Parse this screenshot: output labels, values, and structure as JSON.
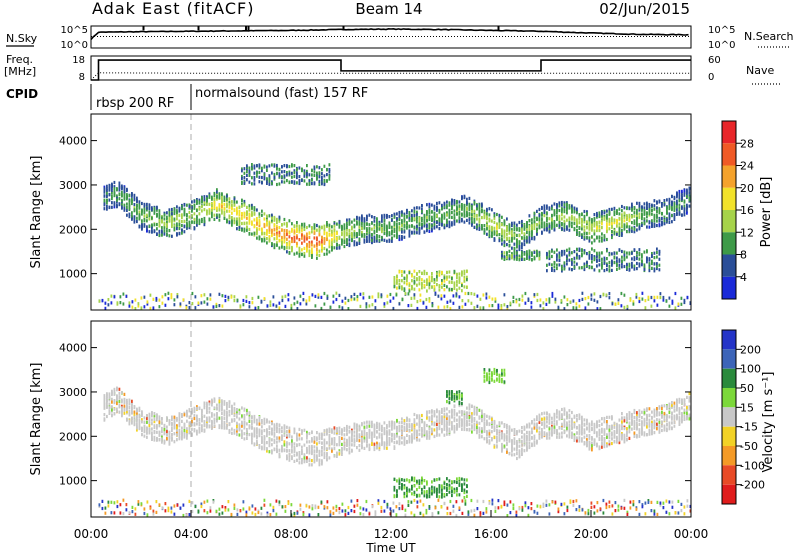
{
  "header": {
    "station": "Adak East (fitACF)",
    "beam": "Beam 14",
    "date": "02/Jun/2015"
  },
  "status_panels": {
    "nsky_label": "N.Sky",
    "nsearch_label": "N.Search",
    "freq_label_line1": "Freq.",
    "freq_label_line2": "[MHz]",
    "nave_label": "Nave",
    "cpid_label": "CPID",
    "noise_ticks": [
      "10^5",
      "10^0"
    ],
    "freq_ticks": [
      "18",
      "8"
    ],
    "nave_ticks": [
      "60",
      "0"
    ],
    "cpid_segments": [
      {
        "label": "rbsp 200 RF",
        "start_hour": 0,
        "end_hour": 4
      },
      {
        "label": "normalsound (fast) 157 RF",
        "start_hour": 4,
        "end_hour": 24
      }
    ]
  },
  "colorbars": {
    "power": {
      "title": "Power [dB]",
      "ticks": [
        "28",
        "24",
        "20",
        "16",
        "12",
        "8",
        "4"
      ],
      "colors": [
        "#e8262a",
        "#f05a26",
        "#f4a22c",
        "#f2e22a",
        "#a6d34a",
        "#3e9a48",
        "#2a4e98",
        "#1a2ad8"
      ]
    },
    "velocity": {
      "title": "Velocity [m s⁻¹]",
      "ticks": [
        "200",
        "100",
        "50",
        "15",
        "-15",
        "-50",
        "-100",
        "-200"
      ],
      "colors": [
        "#2434c8",
        "#3c64b8",
        "#2a8a3c",
        "#7cd83a",
        "#c8c8c8",
        "#f2d226",
        "#f49a26",
        "#e84a26",
        "#e01c1c"
      ]
    }
  },
  "chart_data": [
    {
      "type": "line",
      "panel": "Noise (N.Sky solid, N.Search dotted)",
      "x": [
        0,
        0.3,
        2,
        4,
        6,
        8,
        10,
        12,
        14,
        16,
        18,
        20,
        22,
        24
      ],
      "series": [
        {
          "name": "N.Sky",
          "values": [
            2,
            3.6,
            3.7,
            3.8,
            3.9,
            4.0,
            4.2,
            4.3,
            4.2,
            4.0,
            3.8,
            3.4,
            3.1,
            3.0
          ]
        },
        {
          "name": "N.Search",
          "values": [
            2.6,
            2.6,
            2.6,
            2.6,
            2.6,
            2.6,
            2.6,
            2.6,
            2.6,
            2.6,
            2.6,
            2.6,
            2.6,
            2.6
          ]
        }
      ],
      "ylim": [
        0,
        5
      ]
    },
    {
      "type": "line",
      "panel": "Frequency (solid) and Nave (dotted)",
      "x": [
        0,
        0.3,
        4,
        10,
        18,
        24
      ],
      "series": [
        {
          "name": "Freq",
          "values": [
            8,
            16.3,
            16.3,
            11.8,
            16.3,
            16.3
          ]
        },
        {
          "name": "Nave",
          "values": [
            0,
            18,
            17,
            17,
            17,
            17
          ]
        }
      ],
      "ylim": [
        8,
        18
      ]
    },
    {
      "type": "heatmap",
      "title": "Power [dB]",
      "xlabel": "",
      "ylabel": "Slant Range [km]",
      "xlim": [
        0,
        24
      ],
      "ylim": [
        180,
        4600
      ],
      "yticks": [
        1000,
        2000,
        3000,
        4000
      ],
      "zlim": [
        0,
        32
      ],
      "band": {
        "hours": [
          0,
          1,
          2,
          3,
          4,
          5,
          6,
          7,
          8,
          9,
          10,
          11,
          12,
          13,
          14,
          15,
          16,
          17,
          18,
          19,
          20,
          21,
          22,
          23,
          24
        ],
        "range_km": [
          2500,
          2800,
          2300,
          2100,
          2300,
          2550,
          2300,
          2000,
          1800,
          1700,
          1900,
          2000,
          2000,
          2200,
          2300,
          2450,
          2100,
          1800,
          2200,
          2300,
          2000,
          2150,
          2300,
          2400,
          2700
        ],
        "power_db": [
          8,
          10,
          12,
          14,
          14,
          18,
          20,
          22,
          26,
          28,
          14,
          12,
          12,
          12,
          11,
          12,
          16,
          14,
          12,
          14,
          16,
          18,
          12,
          10,
          8
        ]
      },
      "echo_patches": [
        {
          "hour_start": 12.1,
          "hour_end": 15.0,
          "range_start_km": 600,
          "range_end_km": 1050,
          "power_db": 14
        },
        {
          "hour_start": 16.4,
          "hour_end": 18.0,
          "range_start_km": 1300,
          "range_end_km": 1500,
          "power_db": 10
        },
        {
          "hour_start": 18.2,
          "hour_end": 22.8,
          "range_start_km": 1050,
          "range_end_km": 1550,
          "power_db": 8
        },
        {
          "hour_start": 6.0,
          "hour_end": 9.5,
          "range_start_km": 3000,
          "range_end_km": 3450,
          "power_db": 8
        }
      ]
    },
    {
      "type": "heatmap",
      "title": "Velocity [m s⁻¹]",
      "xlabel": "Time UT",
      "ylabel": "Slant Range [km]",
      "xlim": [
        0,
        24
      ],
      "ylim": [
        180,
        4600
      ],
      "yticks": [
        1000,
        2000,
        3000,
        4000
      ],
      "xticks": [
        "00:00",
        "04:00",
        "08:00",
        "12:00",
        "16:00",
        "20:00",
        "00:00"
      ],
      "zlim": [
        -200,
        200
      ],
      "band_velocity_m_s": 0,
      "echo_patches": [
        {
          "hour_start": 12.1,
          "hour_end": 15.0,
          "range_start_km": 600,
          "range_end_km": 1050,
          "velocity_m_s": 35
        },
        {
          "hour_start": 14.2,
          "hour_end": 14.8,
          "range_start_km": 2700,
          "range_end_km": 3000,
          "velocity_m_s": 35
        },
        {
          "hour_start": 15.7,
          "hour_end": 16.6,
          "range_start_km": 3200,
          "range_end_km": 3500,
          "velocity_m_s": 25
        }
      ]
    }
  ]
}
